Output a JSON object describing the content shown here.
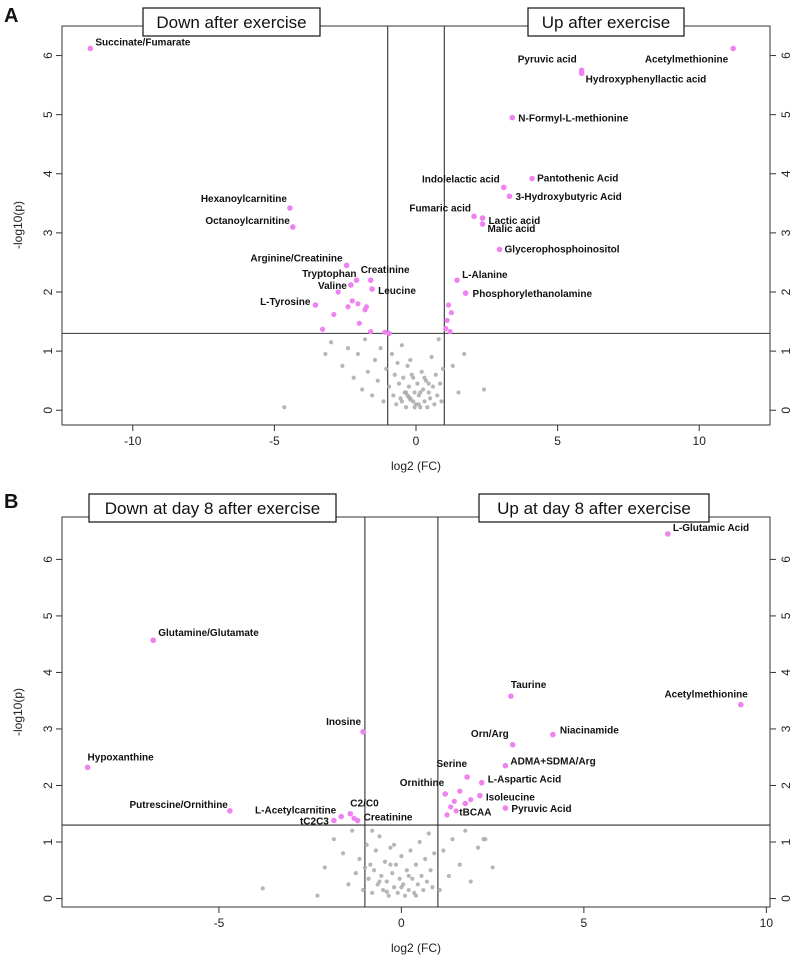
{
  "chart_data": [
    {
      "panel": "A",
      "type": "scatter",
      "subtype": "volcano",
      "xlabel": "log2 (FC)",
      "ylabel": "-log10(p)",
      "xlim": [
        -12.5,
        12.5
      ],
      "ylim": [
        -0.25,
        6.5
      ],
      "x_ticks": [
        -10,
        -5,
        0,
        5,
        10
      ],
      "y_ticks": [
        0,
        1,
        2,
        3,
        4,
        5,
        6
      ],
      "thresholds": {
        "x": [
          -1,
          1
        ],
        "y": 1.3
      },
      "callouts": [
        "Down after exercise",
        "Up after exercise"
      ],
      "significant_color": "#ee82ee",
      "nonsignificant_color": "#a9a9a9",
      "labeled_points": [
        {
          "label": "Succinate/Fumarate",
          "x": -11.5,
          "y": 6.12
        },
        {
          "label": "Acetylmethionine",
          "x": 11.2,
          "y": 6.12
        },
        {
          "label": "Pyruvic acid",
          "x": 5.85,
          "y": 5.75
        },
        {
          "label": "Hydroxyphenyllactic acid",
          "x": 5.85,
          "y": 5.7
        },
        {
          "label": "N-Formyl-L-methionine",
          "x": 3.4,
          "y": 4.95
        },
        {
          "label": "Pantothenic Acid",
          "x": 4.1,
          "y": 3.92
        },
        {
          "label": "Indolelactic acid",
          "x": 3.1,
          "y": 3.77
        },
        {
          "label": "3-Hydroxybutyric Acid",
          "x": 3.3,
          "y": 3.62
        },
        {
          "label": "Hexanoylcarnitine",
          "x": -4.45,
          "y": 3.42
        },
        {
          "label": "Octanoylcarnitine",
          "x": -4.35,
          "y": 3.1
        },
        {
          "label": "Fumaric acid",
          "x": 2.05,
          "y": 3.28
        },
        {
          "label": "Lactic acid",
          "x": 2.35,
          "y": 3.25
        },
        {
          "label": "Malic acid",
          "x": 2.35,
          "y": 3.15
        },
        {
          "label": "Glycerophosphoinositol",
          "x": 2.95,
          "y": 2.72
        },
        {
          "label": "Arginine/Creatinine",
          "x": -2.45,
          "y": 2.45
        },
        {
          "label": "Creatinine",
          "x": -1.6,
          "y": 2.2
        },
        {
          "label": "Tryptophan",
          "x": -2.1,
          "y": 2.2
        },
        {
          "label": "Valine",
          "x": -2.3,
          "y": 2.12
        },
        {
          "label": "Leucine",
          "x": -1.55,
          "y": 2.05
        },
        {
          "label": "L-Alanine",
          "x": 1.45,
          "y": 2.2
        },
        {
          "label": "Phosphorylethanolamine",
          "x": 1.75,
          "y": 1.98
        },
        {
          "label": "L-Tyrosine",
          "x": -3.55,
          "y": 1.78
        }
      ],
      "other_significant": [
        [
          -2.75,
          2.0
        ],
        [
          -2.25,
          1.85
        ],
        [
          -1.75,
          1.75
        ],
        [
          -1.8,
          1.7
        ],
        [
          -2.4,
          1.75
        ],
        [
          -2.0,
          1.47
        ],
        [
          -3.3,
          1.37
        ],
        [
          -1.6,
          1.33
        ],
        [
          -1.1,
          1.32
        ],
        [
          -0.95,
          1.3
        ],
        [
          1.15,
          1.78
        ],
        [
          1.25,
          1.65
        ],
        [
          1.1,
          1.52
        ],
        [
          1.05,
          1.38
        ],
        [
          1.2,
          1.33
        ],
        [
          -2.05,
          1.8
        ],
        [
          -2.9,
          1.62
        ]
      ],
      "nonsignificant": [
        [
          -4.65,
          0.05
        ],
        [
          -3.2,
          0.95
        ],
        [
          -3.0,
          1.15
        ],
        [
          -2.6,
          0.75
        ],
        [
          -2.4,
          1.05
        ],
        [
          -2.2,
          0.55
        ],
        [
          -2.05,
          0.95
        ],
        [
          -1.9,
          0.35
        ],
        [
          -1.8,
          1.2
        ],
        [
          -1.7,
          0.65
        ],
        [
          -1.55,
          0.25
        ],
        [
          -1.45,
          0.85
        ],
        [
          -1.35,
          0.5
        ],
        [
          -1.25,
          1.05
        ],
        [
          -1.15,
          0.15
        ],
        [
          -1.05,
          0.7
        ],
        [
          -0.95,
          0.4
        ],
        [
          -0.85,
          0.95
        ],
        [
          -0.8,
          0.25
        ],
        [
          -0.75,
          0.6
        ],
        [
          -0.7,
          0.1
        ],
        [
          -0.65,
          0.8
        ],
        [
          -0.6,
          0.45
        ],
        [
          -0.55,
          0.2
        ],
        [
          -0.5,
          1.1
        ],
        [
          -0.45,
          0.55
        ],
        [
          -0.4,
          0.3
        ],
        [
          -0.35,
          0.05
        ],
        [
          -0.3,
          0.75
        ],
        [
          -0.25,
          0.4
        ],
        [
          -0.2,
          0.2
        ],
        [
          -0.15,
          0.6
        ],
        [
          -0.1,
          0.15
        ],
        [
          -0.05,
          0.3
        ],
        [
          0.0,
          0.1
        ],
        [
          0.05,
          0.45
        ],
        [
          0.1,
          0.25
        ],
        [
          0.15,
          0.05
        ],
        [
          0.2,
          0.65
        ],
        [
          0.25,
          0.35
        ],
        [
          0.3,
          0.15
        ],
        [
          0.35,
          0.5
        ],
        [
          0.4,
          0.05
        ],
        [
          0.45,
          0.3
        ],
        [
          0.5,
          0.2
        ],
        [
          0.55,
          0.9
        ],
        [
          0.6,
          0.4
        ],
        [
          0.65,
          0.1
        ],
        [
          0.7,
          0.6
        ],
        [
          0.75,
          0.25
        ],
        [
          0.8,
          1.2
        ],
        [
          0.85,
          0.45
        ],
        [
          0.9,
          0.15
        ],
        [
          0.95,
          0.7
        ],
        [
          -0.1,
          0.55
        ],
        [
          -0.2,
          0.85
        ],
        [
          -0.35,
          0.3
        ],
        [
          -0.5,
          0.15
        ],
        [
          0.15,
          0.3
        ],
        [
          0.3,
          0.55
        ],
        [
          1.3,
          0.75
        ],
        [
          1.5,
          0.3
        ],
        [
          1.7,
          0.95
        ],
        [
          2.4,
          0.35
        ],
        [
          -0.3,
          0.25
        ],
        [
          -0.25,
          0.22
        ],
        [
          -0.2,
          0.18
        ],
        [
          0.45,
          0.45
        ],
        [
          -0.05,
          0.05
        ],
        [
          0.1,
          0.1
        ]
      ]
    },
    {
      "panel": "B",
      "type": "scatter",
      "subtype": "volcano",
      "xlabel": "log2 (FC)",
      "ylabel": "-log10(p)",
      "xlim": [
        -9.3,
        10.1
      ],
      "ylim": [
        -0.15,
        6.75
      ],
      "x_ticks": [
        -5,
        0,
        5,
        10
      ],
      "y_ticks": [
        0,
        1,
        2,
        3,
        4,
        5,
        6
      ],
      "thresholds": {
        "x": [
          -1,
          1
        ],
        "y": 1.3
      },
      "callouts": [
        "Down at day 8 after exercise",
        "Up at day 8 after exercise"
      ],
      "significant_color": "#ee82ee",
      "nonsignificant_color": "#a9a9a9",
      "labeled_points": [
        {
          "label": "L-Glutamic Acid",
          "x": 7.3,
          "y": 6.45
        },
        {
          "label": "Glutamine/Glutamate",
          "x": -6.8,
          "y": 4.57
        },
        {
          "label": "Taurine",
          "x": 3.0,
          "y": 3.58
        },
        {
          "label": "Acetylmethionine",
          "x": 9.3,
          "y": 3.43
        },
        {
          "label": "Inosine",
          "x": -1.05,
          "y": 2.95
        },
        {
          "label": "Niacinamide",
          "x": 4.15,
          "y": 2.9
        },
        {
          "label": "Orn/Arg",
          "x": 3.05,
          "y": 2.72
        },
        {
          "label": "ADMA+SDMA/Arg",
          "x": 2.85,
          "y": 2.35
        },
        {
          "label": "Hypoxanthine",
          "x": -8.6,
          "y": 2.32
        },
        {
          "label": "Serine",
          "x": 1.8,
          "y": 2.15
        },
        {
          "label": "L-Aspartic Acid",
          "x": 2.2,
          "y": 2.05
        },
        {
          "label": "Ornithine",
          "x": 1.2,
          "y": 1.85
        },
        {
          "label": "Isoleucine",
          "x": 2.15,
          "y": 1.82
        },
        {
          "label": "tBCAA",
          "x": 1.75,
          "y": 1.68
        },
        {
          "label": "Pyruvic Acid",
          "x": 2.85,
          "y": 1.6
        },
        {
          "label": "Putrescine/Ornithine",
          "x": -4.7,
          "y": 1.55
        },
        {
          "label": "C2/C0",
          "x": -1.4,
          "y": 1.5
        },
        {
          "label": "L-Acetylcarnitine",
          "x": -1.65,
          "y": 1.45
        },
        {
          "label": "Creatinine",
          "x": -1.2,
          "y": 1.38
        },
        {
          "label": "tC2C3",
          "x": -1.85,
          "y": 1.38
        }
      ],
      "other_significant": [
        [
          1.45,
          1.72
        ],
        [
          1.35,
          1.62
        ],
        [
          1.5,
          1.55
        ],
        [
          1.6,
          1.9
        ],
        [
          1.25,
          1.48
        ],
        [
          -1.3,
          1.42
        ],
        [
          1.9,
          1.75
        ]
      ],
      "nonsignificant": [
        [
          -3.8,
          0.18
        ],
        [
          -2.3,
          0.05
        ],
        [
          -2.1,
          0.55
        ],
        [
          -1.85,
          1.05
        ],
        [
          -1.6,
          0.8
        ],
        [
          -1.45,
          0.25
        ],
        [
          -1.35,
          1.2
        ],
        [
          -1.25,
          0.45
        ],
        [
          -1.15,
          0.7
        ],
        [
          -1.05,
          0.15
        ],
        [
          -0.95,
          0.95
        ],
        [
          -0.9,
          0.35
        ],
        [
          -0.85,
          0.6
        ],
        [
          -0.8,
          0.1
        ],
        [
          -0.75,
          0.5
        ],
        [
          -0.7,
          0.85
        ],
        [
          -0.65,
          0.25
        ],
        [
          -0.6,
          1.1
        ],
        [
          -0.55,
          0.4
        ],
        [
          -0.5,
          0.15
        ],
        [
          -0.45,
          0.65
        ],
        [
          -0.4,
          0.3
        ],
        [
          -0.35,
          0.05
        ],
        [
          -0.3,
          0.9
        ],
        [
          -0.25,
          0.45
        ],
        [
          -0.2,
          0.2
        ],
        [
          -0.15,
          0.6
        ],
        [
          -0.1,
          0.1
        ],
        [
          -0.05,
          0.35
        ],
        [
          0.0,
          0.75
        ],
        [
          0.05,
          0.25
        ],
        [
          0.1,
          0.05
        ],
        [
          0.15,
          0.5
        ],
        [
          0.2,
          0.15
        ],
        [
          0.25,
          0.85
        ],
        [
          0.3,
          0.35
        ],
        [
          0.35,
          0.1
        ],
        [
          0.4,
          0.6
        ],
        [
          0.45,
          0.25
        ],
        [
          0.5,
          1.0
        ],
        [
          0.55,
          0.4
        ],
        [
          0.6,
          0.15
        ],
        [
          0.65,
          0.7
        ],
        [
          0.7,
          0.3
        ],
        [
          0.75,
          1.15
        ],
        [
          0.8,
          0.5
        ],
        [
          0.85,
          0.2
        ],
        [
          0.9,
          0.8
        ],
        [
          -0.6,
          0.3
        ],
        [
          -0.3,
          0.6
        ],
        [
          0.0,
          0.2
        ],
        [
          0.2,
          0.4
        ],
        [
          -1.0,
          0.55
        ],
        [
          -0.8,
          1.2
        ],
        [
          -0.2,
          0.95
        ],
        [
          1.15,
          0.85
        ],
        [
          1.3,
          0.4
        ],
        [
          1.4,
          1.05
        ],
        [
          1.6,
          0.6
        ],
        [
          1.75,
          1.2
        ],
        [
          1.9,
          0.3
        ],
        [
          2.1,
          0.9
        ],
        [
          2.3,
          1.05
        ],
        [
          2.5,
          0.55
        ],
        [
          2.25,
          1.05
        ],
        [
          1.05,
          0.15
        ],
        [
          0.4,
          0.05
        ],
        [
          -0.4,
          0.12
        ]
      ]
    }
  ]
}
